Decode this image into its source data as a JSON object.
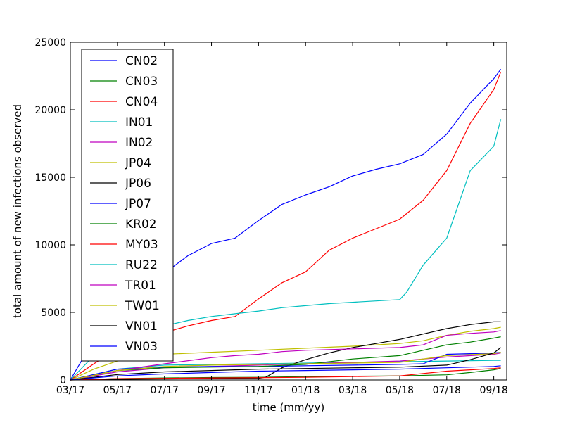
{
  "chart_data": {
    "type": "line",
    "title": "",
    "xlabel": "time (mm/yy)",
    "ylabel": "total amount of new infections observed",
    "x_tick_labels": [
      "03/17",
      "05/17",
      "07/17",
      "09/17",
      "11/17",
      "01/18",
      "03/18",
      "05/18",
      "07/18",
      "09/18"
    ],
    "xlim": [
      "03/17",
      "09/18"
    ],
    "ylim": [
      0,
      25000
    ],
    "y_ticks": [
      0,
      5000,
      10000,
      15000,
      20000,
      25000
    ],
    "grid": false,
    "legend_position": "top-left",
    "series": [
      {
        "name": "CN02",
        "color": "#0000ff",
        "points": [
          [
            "03/17",
            0
          ],
          [
            "04/17",
            3000
          ],
          [
            "05/17",
            5800
          ],
          [
            "06/17",
            7000
          ],
          [
            "07/17",
            7900
          ],
          [
            "08/17",
            9200
          ],
          [
            "09/17",
            10100
          ],
          [
            "10/17",
            10500
          ],
          [
            "11/17",
            11800
          ],
          [
            "12/17",
            13000
          ],
          [
            "01/18",
            13700
          ],
          [
            "02/18",
            14300
          ],
          [
            "03/18",
            15100
          ],
          [
            "04/18",
            15600
          ],
          [
            "05/18",
            16000
          ],
          [
            "06/18",
            16700
          ],
          [
            "07/18",
            18200
          ],
          [
            "08/18",
            20500
          ],
          [
            "09/18",
            22300
          ],
          [
            "09/18",
            23000
          ]
        ]
      },
      {
        "name": "CN03",
        "color": "#008000",
        "points": [
          [
            "03/17",
            0
          ],
          [
            "05/17",
            100
          ],
          [
            "07/17",
            150
          ],
          [
            "09/17",
            180
          ],
          [
            "11/17",
            200
          ],
          [
            "01/18",
            250
          ],
          [
            "03/18",
            280
          ],
          [
            "05/18",
            300
          ],
          [
            "07/18",
            380
          ],
          [
            "08/18",
            550
          ],
          [
            "09/18",
            750
          ],
          [
            "09/18",
            850
          ]
        ]
      },
      {
        "name": "CN04",
        "color": "#ff0000",
        "points": [
          [
            "03/17",
            0
          ],
          [
            "04/17",
            1200
          ],
          [
            "05/17",
            2300
          ],
          [
            "06/17",
            3000
          ],
          [
            "07/17",
            3500
          ],
          [
            "08/17",
            4000
          ],
          [
            "09/17",
            4400
          ],
          [
            "10/17",
            4700
          ],
          [
            "11/17",
            6000
          ],
          [
            "12/17",
            7200
          ],
          [
            "01/18",
            8000
          ],
          [
            "02/18",
            9600
          ],
          [
            "03/18",
            10500
          ],
          [
            "04/18",
            11200
          ],
          [
            "05/18",
            11900
          ],
          [
            "06/18",
            13300
          ],
          [
            "07/18",
            15500
          ],
          [
            "08/18",
            19000
          ],
          [
            "09/18",
            21500
          ],
          [
            "09/18",
            22800
          ]
        ]
      },
      {
        "name": "IN01",
        "color": "#00bfbf",
        "points": [
          [
            "03/17",
            0
          ],
          [
            "05/17",
            800
          ],
          [
            "07/17",
            1100
          ],
          [
            "09/17",
            1150
          ],
          [
            "11/17",
            1200
          ],
          [
            "01/18",
            1250
          ],
          [
            "03/18",
            1300
          ],
          [
            "05/18",
            1350
          ],
          [
            "07/18",
            1400
          ],
          [
            "09/18",
            1450
          ],
          [
            "09/18",
            1450
          ]
        ]
      },
      {
        "name": "IN02",
        "color": "#bf00bf",
        "points": [
          [
            "03/17",
            0
          ],
          [
            "05/17",
            600
          ],
          [
            "07/17",
            900
          ],
          [
            "09/17",
            1000
          ],
          [
            "11/17",
            1100
          ],
          [
            "01/18",
            1200
          ],
          [
            "03/18",
            1300
          ],
          [
            "05/18",
            1400
          ],
          [
            "07/18",
            1700
          ],
          [
            "09/18",
            1900
          ],
          [
            "09/18",
            2000
          ]
        ]
      },
      {
        "name": "JP04",
        "color": "#bfbf00",
        "points": [
          [
            "03/17",
            0
          ],
          [
            "04/17",
            800
          ],
          [
            "05/17",
            1400
          ],
          [
            "06/17",
            1700
          ],
          [
            "07/17",
            1900
          ],
          [
            "09/17",
            2050
          ],
          [
            "11/17",
            2200
          ],
          [
            "01/18",
            2350
          ],
          [
            "03/18",
            2500
          ],
          [
            "05/18",
            2700
          ],
          [
            "06/18",
            2900
          ],
          [
            "07/18",
            3300
          ],
          [
            "08/18",
            3600
          ],
          [
            "09/18",
            3800
          ],
          [
            "09/18",
            3900
          ]
        ]
      },
      {
        "name": "JP06",
        "color": "#000000",
        "points": [
          [
            "03/17",
            0
          ],
          [
            "05/17",
            50
          ],
          [
            "07/17",
            80
          ],
          [
            "09/17",
            100
          ],
          [
            "11/17",
            120
          ],
          [
            "11/17",
            200
          ],
          [
            "12/17",
            900
          ],
          [
            "01/18",
            1500
          ],
          [
            "02/18",
            2000
          ],
          [
            "03/18",
            2400
          ],
          [
            "04/18",
            2700
          ],
          [
            "05/18",
            3000
          ],
          [
            "06/18",
            3400
          ],
          [
            "07/18",
            3800
          ],
          [
            "08/18",
            4100
          ],
          [
            "09/18",
            4300
          ],
          [
            "09/18",
            4300
          ]
        ]
      },
      {
        "name": "JP07",
        "color": "#0000ff",
        "points": [
          [
            "03/17",
            0
          ],
          [
            "05/17",
            800
          ],
          [
            "07/17",
            950
          ],
          [
            "09/17",
            1000
          ],
          [
            "11/17",
            1000
          ],
          [
            "01/18",
            1050
          ],
          [
            "03/18",
            1100
          ],
          [
            "05/18",
            1150
          ],
          [
            "06/18",
            1200
          ],
          [
            "07/18",
            1900
          ],
          [
            "08/18",
            1950
          ],
          [
            "09/18",
            2000
          ],
          [
            "09/18",
            2050
          ]
        ]
      },
      {
        "name": "KR02",
        "color": "#008000",
        "points": [
          [
            "03/17",
            0
          ],
          [
            "05/17",
            700
          ],
          [
            "07/17",
            900
          ],
          [
            "09/17",
            950
          ],
          [
            "11/17",
            1000
          ],
          [
            "01/18",
            1150
          ],
          [
            "03/18",
            1550
          ],
          [
            "05/18",
            1800
          ],
          [
            "06/18",
            2200
          ],
          [
            "07/18",
            2600
          ],
          [
            "08/18",
            2800
          ],
          [
            "09/18",
            3100
          ],
          [
            "09/18",
            3200
          ]
        ]
      },
      {
        "name": "MY03",
        "color": "#ff0000",
        "points": [
          [
            "03/17",
            0
          ],
          [
            "05/17",
            100
          ],
          [
            "07/17",
            120
          ],
          [
            "09/17",
            150
          ],
          [
            "11/17",
            170
          ],
          [
            "01/18",
            200
          ],
          [
            "03/18",
            250
          ],
          [
            "05/18",
            300
          ],
          [
            "07/18",
            650
          ],
          [
            "08/18",
            750
          ],
          [
            "09/18",
            850
          ],
          [
            "09/18",
            900
          ]
        ]
      },
      {
        "name": "RU22",
        "color": "#00bfbf",
        "points": [
          [
            "03/17",
            0
          ],
          [
            "04/17",
            1800
          ],
          [
            "05/17",
            2900
          ],
          [
            "06/17",
            3400
          ],
          [
            "07/17",
            4000
          ],
          [
            "08/17",
            4400
          ],
          [
            "09/17",
            4700
          ],
          [
            "10/17",
            4900
          ],
          [
            "11/17",
            5100
          ],
          [
            "12/17",
            5350
          ],
          [
            "01/18",
            5500
          ],
          [
            "02/18",
            5650
          ],
          [
            "03/18",
            5750
          ],
          [
            "04/18",
            5850
          ],
          [
            "05/18",
            5950
          ],
          [
            "05/18",
            6500
          ],
          [
            "06/18",
            8500
          ],
          [
            "07/18",
            10500
          ],
          [
            "08/18",
            15500
          ],
          [
            "09/18",
            17300
          ],
          [
            "09/18",
            19300
          ]
        ]
      },
      {
        "name": "TR01",
        "color": "#bf00bf",
        "points": [
          [
            "03/17",
            0
          ],
          [
            "05/17",
            700
          ],
          [
            "07/17",
            1200
          ],
          [
            "09/17",
            1650
          ],
          [
            "10/17",
            1800
          ],
          [
            "11/17",
            1900
          ],
          [
            "12/17",
            2100
          ],
          [
            "01/18",
            2200
          ],
          [
            "03/18",
            2300
          ],
          [
            "05/18",
            2400
          ],
          [
            "06/18",
            2600
          ],
          [
            "07/18",
            3300
          ],
          [
            "08/18",
            3450
          ],
          [
            "09/18",
            3550
          ],
          [
            "09/18",
            3650
          ]
        ]
      },
      {
        "name": "TW01",
        "color": "#bfbf00",
        "points": [
          [
            "03/17",
            0
          ],
          [
            "05/17",
            700
          ],
          [
            "07/17",
            1000
          ],
          [
            "09/17",
            1100
          ],
          [
            "11/17",
            1150
          ],
          [
            "01/18",
            1200
          ],
          [
            "03/18",
            1250
          ],
          [
            "05/18",
            1300
          ],
          [
            "07/18",
            1800
          ],
          [
            "09/18",
            1950
          ],
          [
            "09/18",
            2050
          ]
        ]
      },
      {
        "name": "VN01",
        "color": "#000000",
        "points": [
          [
            "03/17",
            0
          ],
          [
            "05/17",
            400
          ],
          [
            "07/17",
            600
          ],
          [
            "09/17",
            700
          ],
          [
            "11/17",
            800
          ],
          [
            "01/18",
            850
          ],
          [
            "03/18",
            900
          ],
          [
            "05/18",
            950
          ],
          [
            "07/18",
            1100
          ],
          [
            "08/18",
            1500
          ],
          [
            "09/18",
            2000
          ],
          [
            "09/18",
            2400
          ]
        ]
      },
      {
        "name": "VN03",
        "color": "#0000ff",
        "points": [
          [
            "03/17",
            0
          ],
          [
            "05/17",
            300
          ],
          [
            "07/17",
            450
          ],
          [
            "09/17",
            550
          ],
          [
            "11/17",
            650
          ],
          [
            "01/18",
            700
          ],
          [
            "03/18",
            750
          ],
          [
            "05/18",
            800
          ],
          [
            "07/18",
            900
          ],
          [
            "09/18",
            1000
          ],
          [
            "09/18",
            1050
          ]
        ]
      }
    ]
  }
}
